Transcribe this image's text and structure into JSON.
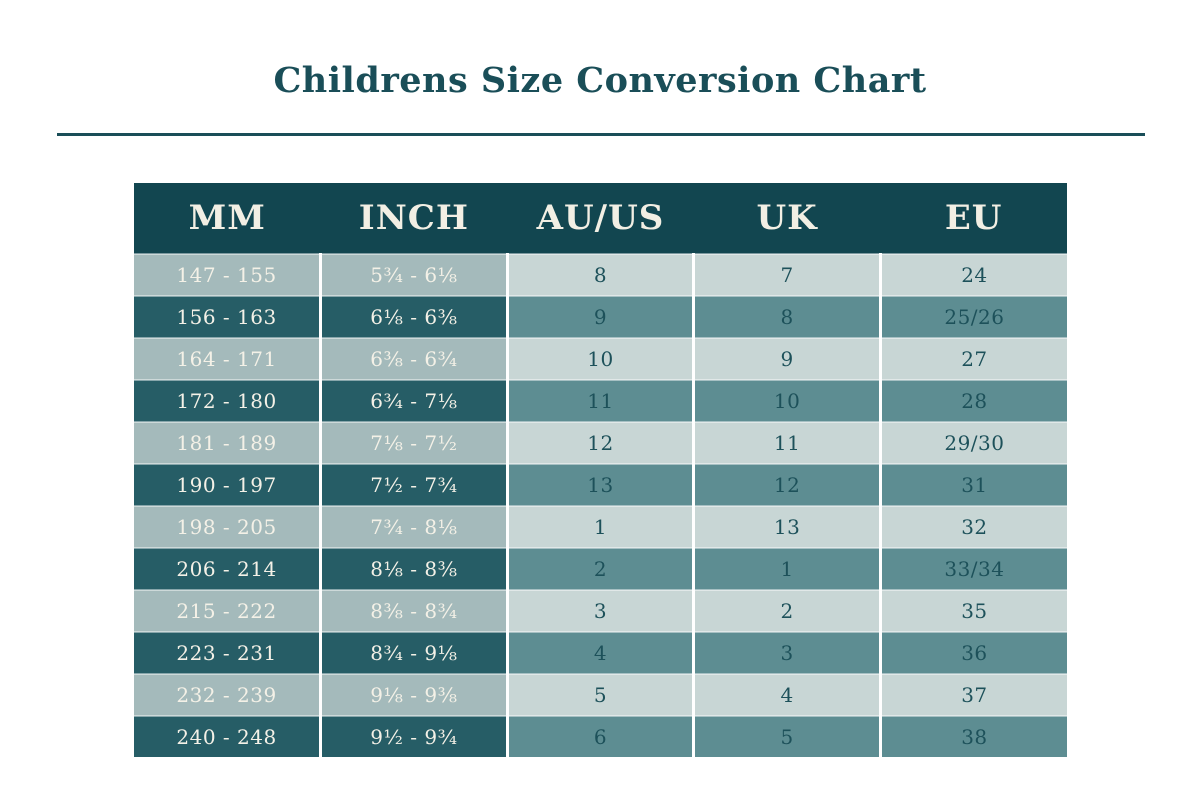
{
  "page_title": "Childrens Size Conversion Chart",
  "colors": {
    "accent": "#1a4e58",
    "header-bg": "#124650",
    "header-text": "#f2efe4",
    "row-light-left": "#a4babb",
    "row-light-right": "#c8d6d5",
    "row-dark-left": "#265d66",
    "row-dark-right": "#5d8d92",
    "cell-text-cream": "#f4f1e7",
    "cell-text-teal": "#1d515a",
    "separator": "#ffffff"
  },
  "table": {
    "columns": [
      "MM",
      "INCH",
      "AU/US",
      "UK",
      "EU"
    ],
    "rows": [
      [
        "147 - 155",
        "5¾ - 6⅛",
        "8",
        "7",
        "24"
      ],
      [
        "156 - 163",
        "6⅛ - 6⅜",
        "9",
        "8",
        "25/26"
      ],
      [
        "164 - 171",
        "6⅜ - 6¾",
        "10",
        "9",
        "27"
      ],
      [
        "172 - 180",
        "6¾ - 7⅛",
        "11",
        "10",
        "28"
      ],
      [
        "181 - 189",
        "7⅛ - 7½",
        "12",
        "11",
        "29/30"
      ],
      [
        "190 - 197",
        "7½ - 7¾",
        "13",
        "12",
        "31"
      ],
      [
        "198 - 205",
        "7¾ - 8⅛",
        "1",
        "13",
        "32"
      ],
      [
        "206 - 214",
        "8⅛ - 8⅜",
        "2",
        "1",
        "33/34"
      ],
      [
        "215 - 222",
        "8⅜ - 8¾",
        "3",
        "2",
        "35"
      ],
      [
        "223 - 231",
        "8¾ - 9⅛",
        "4",
        "3",
        "36"
      ],
      [
        "232 - 239",
        "9⅛ - 9⅜",
        "5",
        "4",
        "37"
      ],
      [
        "240 - 248",
        "9½ - 9¾",
        "6",
        "5",
        "38"
      ]
    ]
  },
  "chart_data": {
    "type": "table",
    "title": "Childrens Size Conversion Chart",
    "columns": [
      "MM",
      "INCH",
      "AU/US",
      "UK",
      "EU"
    ],
    "rows": [
      [
        "147 - 155",
        "5¾ - 6⅛",
        "8",
        "7",
        "24"
      ],
      [
        "156 - 163",
        "6⅛ - 6⅜",
        "9",
        "8",
        "25/26"
      ],
      [
        "164 - 171",
        "6⅜ - 6¾",
        "10",
        "9",
        "27"
      ],
      [
        "172 - 180",
        "6¾ - 7⅛",
        "11",
        "10",
        "28"
      ],
      [
        "181 - 189",
        "7⅛ - 7½",
        "12",
        "11",
        "29/30"
      ],
      [
        "190 - 197",
        "7½ - 7¾",
        "13",
        "12",
        "31"
      ],
      [
        "198 - 205",
        "7¾ - 8⅛",
        "1",
        "13",
        "32"
      ],
      [
        "206 - 214",
        "8⅛ - 8⅜",
        "2",
        "1",
        "33/34"
      ],
      [
        "215 - 222",
        "8⅜ - 8¾",
        "3",
        "2",
        "35"
      ],
      [
        "223 - 231",
        "8¾ - 9⅛",
        "4",
        "3",
        "36"
      ],
      [
        "232 - 239",
        "9⅛ - 9⅜",
        "5",
        "4",
        "37"
      ],
      [
        "240 - 248",
        "9½ - 9¾",
        "6",
        "5",
        "38"
      ]
    ],
    "layout": {
      "row_striping": "alternating light/dark",
      "header_position": "top",
      "grid": "white vertical separators between columns"
    }
  }
}
